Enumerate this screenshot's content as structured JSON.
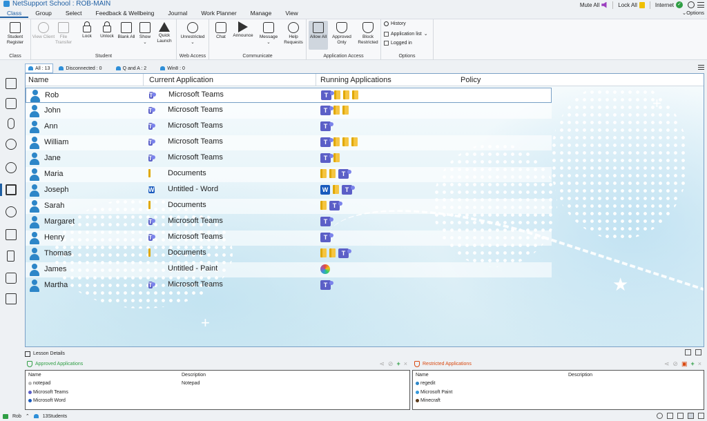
{
  "window": {
    "title": "NetSupport School : ROB-MAIN",
    "mute_all": "Mute All",
    "lock_all": "Lock All",
    "internet": "Internet"
  },
  "menu": {
    "tabs": [
      "Class",
      "Group",
      "Select",
      "Feedback & Wellbeing",
      "Journal",
      "Work Planner",
      "Manage",
      "View"
    ],
    "options": "Options"
  },
  "ribbon": {
    "class_group": {
      "title": "Class",
      "student_register": "Student Register"
    },
    "student_group": {
      "title": "Student",
      "view_client": "View Client",
      "file_transfer": "File Transfer",
      "lock": "Lock",
      "unlock": "Unlock",
      "blank_all": "Blank All",
      "show": "Show",
      "quick_launch": "Quick Launch"
    },
    "web_group": {
      "title": "Web Access",
      "unrestricted": "Unrestricted"
    },
    "communicate_group": {
      "title": "Communicate",
      "chat": "Chat",
      "announce": "Announce",
      "message": "Message",
      "help_requests": "Help Requests"
    },
    "app_group": {
      "title": "Application Access",
      "allow_all": "Allow All",
      "approved_only": "Approved Only",
      "block_restricted": "Block Restricted"
    },
    "options_group": {
      "title": "Options",
      "history": "History",
      "application_list": "Application list",
      "logged_in": "Logged in"
    }
  },
  "filters": [
    {
      "label": "All : 13"
    },
    {
      "label": "Disconnected : 0"
    },
    {
      "label": "Q and A : 2"
    },
    {
      "label": "Win8 : 0"
    }
  ],
  "table": {
    "headers": {
      "name": "Name",
      "current": "Current Application",
      "running": "Running Applications",
      "policy": "Policy"
    },
    "rows": [
      {
        "name": "Rob",
        "app_icon": "teams",
        "app": "Microsoft Teams",
        "running": [
          "teams",
          "folder",
          "folder",
          "folder"
        ]
      },
      {
        "name": "John",
        "app_icon": "teams",
        "app": "Microsoft Teams",
        "running": [
          "teams",
          "folder",
          "folder"
        ]
      },
      {
        "name": "Ann",
        "app_icon": "teams",
        "app": "Microsoft Teams",
        "running": [
          "teams"
        ]
      },
      {
        "name": "William",
        "app_icon": "teams",
        "app": "Microsoft Teams",
        "running": [
          "teams",
          "folder",
          "folder",
          "folder"
        ]
      },
      {
        "name": "Jane",
        "app_icon": "teams",
        "app": "Microsoft Teams",
        "running": [
          "teams",
          "folder"
        ]
      },
      {
        "name": "Maria",
        "app_icon": "folder",
        "app": "Documents",
        "running": [
          "folder",
          "folder",
          "teams"
        ]
      },
      {
        "name": "Joseph",
        "app_icon": "word",
        "app": "Untitled - Word",
        "running": [
          "word",
          "folder",
          "teams"
        ]
      },
      {
        "name": "Sarah",
        "app_icon": "folder",
        "app": "Documents",
        "running": [
          "folder",
          "teams"
        ]
      },
      {
        "name": "Margaret",
        "app_icon": "teams",
        "app": "Microsoft Teams",
        "running": [
          "teams"
        ]
      },
      {
        "name": "Henry",
        "app_icon": "teams",
        "app": "Microsoft Teams",
        "running": [
          "teams"
        ]
      },
      {
        "name": "Thomas",
        "app_icon": "folder",
        "app": "Documents",
        "running": [
          "folder",
          "folder",
          "teams"
        ]
      },
      {
        "name": "James",
        "app_icon": "paint",
        "app": "Untitled - Paint",
        "running": [
          "paint"
        ]
      },
      {
        "name": "Martha",
        "app_icon": "teams",
        "app": "Microsoft Teams",
        "running": [
          "teams"
        ]
      }
    ]
  },
  "lesson": {
    "title": "Lesson Details",
    "approved": {
      "title": "Approved Applications",
      "col_name": "Name",
      "col_desc": "Description",
      "items": [
        {
          "name": "notepad",
          "desc": "Notepad"
        },
        {
          "name": "Microsoft Teams",
          "desc": ""
        },
        {
          "name": "Microsoft Word",
          "desc": ""
        }
      ]
    },
    "restricted": {
      "title": "Restricted Applications",
      "col_name": "Name",
      "col_desc": "Description",
      "items": [
        {
          "name": "regedit",
          "desc": ""
        },
        {
          "name": "Microsoft Paint",
          "desc": ""
        },
        {
          "name": "Minecraft",
          "desc": ""
        }
      ]
    }
  },
  "status": {
    "user": "Rob",
    "students": "13Students"
  },
  "colors": {
    "accent": "#1f5fa3",
    "teams": "#5b5fc7",
    "folder": "#f5c542",
    "word": "#185abd",
    "approved": "#2f9e44",
    "restricted": "#d9480f"
  }
}
